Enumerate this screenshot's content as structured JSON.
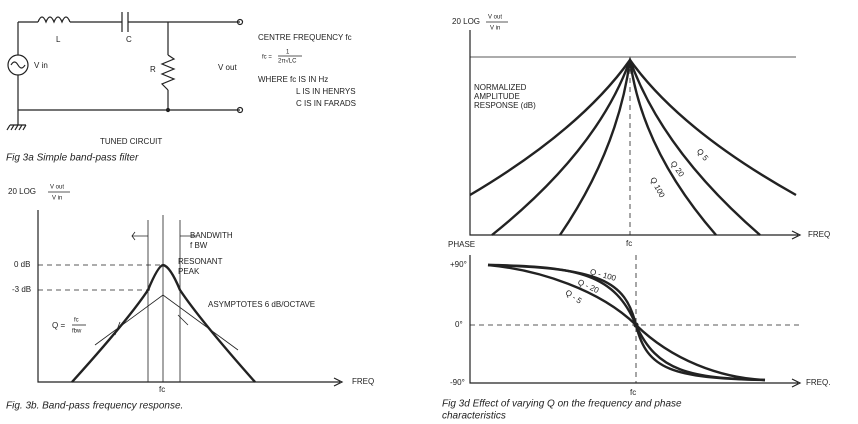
{
  "fig3a": {
    "labels": {
      "l": "L",
      "c": "C",
      "r": "R",
      "vin": "V in",
      "vout": "V out"
    },
    "subtitle": "TUNED CIRCUIT",
    "caption": "Fig 3a  Simple band-pass filter"
  },
  "formula": {
    "heading": "CENTRE FREQUENCY fc",
    "lhs": "fc =",
    "numerator": "1",
    "denominator": "2π√LC",
    "lines": [
      "WHERE fc IS IN Hz",
      "L IS IN HENRYS",
      "C IS IN FARADS"
    ]
  },
  "fig3b": {
    "y_axis": {
      "prefix": "20 LOG",
      "numerator": "V out",
      "denominator": "V in"
    },
    "bandwidth": [
      "BANDWITH",
      "f BW"
    ],
    "peak": [
      "RESONANT",
      "PEAK"
    ],
    "levels": [
      "0 dB",
      "-3 dB"
    ],
    "asymptotes": "ASYMPTOTES  6 dB/OCTAVE",
    "q": {
      "lhs": "Q =",
      "numerator": "fc",
      "denominator": "fbw"
    },
    "x_label": "fc",
    "x_axis": "FREQ",
    "caption": "Fig. 3b. Band-pass frequency response."
  },
  "fig3d": {
    "amplitude": {
      "y_axis": {
        "prefix": "20 LOG",
        "numerator": "V out",
        "denominator": "V in"
      },
      "note": [
        "NORMALIZED",
        "AMPLITUDE",
        "RESPONSE (dB)"
      ],
      "curves": [
        "Q  5",
        "Q  20",
        "Q  100"
      ],
      "x_label": "fc",
      "x_axis": "FREQ"
    },
    "phase": {
      "y_axis": "PHASE",
      "levels": [
        "+90°",
        "0°",
        "-90°"
      ],
      "curves": [
        "Q - 100",
        "Q - 20",
        "Q - 5"
      ],
      "x_label": "fc",
      "x_axis": "FREQ."
    },
    "caption": [
      "Fig  3d  Effect  of  varying  Q  on  the  frequency  and  phase",
      "characteristics"
    ]
  }
}
